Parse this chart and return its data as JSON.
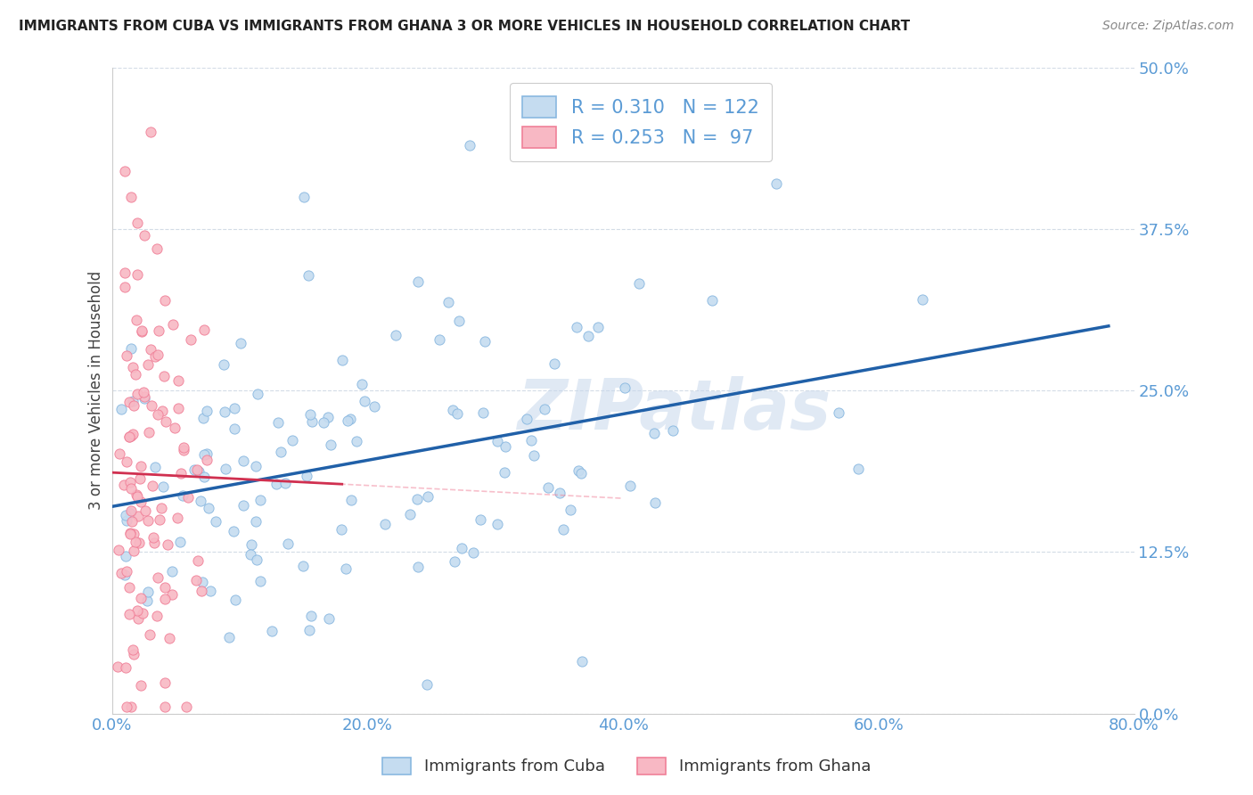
{
  "title": "IMMIGRANTS FROM CUBA VS IMMIGRANTS FROM GHANA 3 OR MORE VEHICLES IN HOUSEHOLD CORRELATION CHART",
  "source": "Source: ZipAtlas.com",
  "xlim": [
    0.0,
    0.8
  ],
  "ylim": [
    0.0,
    0.5
  ],
  "ylabel": "3 or more Vehicles in Household",
  "cuba_R": 0.31,
  "cuba_N": 122,
  "ghana_R": 0.253,
  "ghana_N": 97,
  "cuba_color": "#89b8e0",
  "cuba_fill": "#c5dcf0",
  "ghana_color": "#f08098",
  "ghana_fill": "#f8b8c4",
  "trend_cuba_color": "#2060a8",
  "trend_ghana_color": "#d03050",
  "watermark": "ZIPatlas",
  "legend_label_cuba": "Immigrants from Cuba",
  "legend_label_ghana": "Immigrants from Ghana",
  "x_ticks": [
    0.0,
    0.2,
    0.4,
    0.6,
    0.8
  ],
  "y_ticks": [
    0.0,
    0.125,
    0.25,
    0.375,
    0.5
  ],
  "x_tick_labels": [
    "0.0%",
    "20.0%",
    "40.0%",
    "60.0%",
    "80.0%"
  ],
  "y_tick_labels": [
    "0.0%",
    "12.5%",
    "25.0%",
    "37.5%",
    "50.0%"
  ],
  "tick_color": "#5b9bd5",
  "grid_color": "#c8d4e0",
  "title_fontsize": 11,
  "tick_fontsize": 13,
  "source_fontsize": 10
}
